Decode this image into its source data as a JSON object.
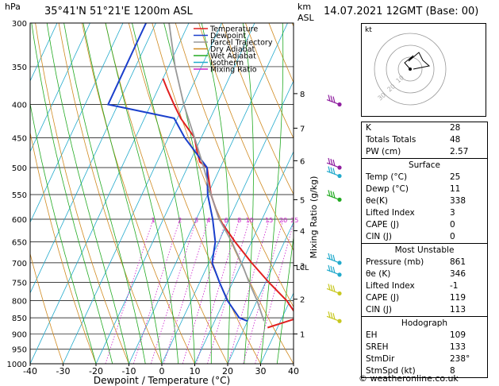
{
  "header": {
    "hpa_label": "hPa",
    "location": "35°41'N  51°21'E  1200m  ASL",
    "km_label": "km",
    "asl_label": "ASL",
    "datetime": "14.07.2021  12GMT  (Base: 00)"
  },
  "footer": {
    "copyright": "© weatheronline.co.uk"
  },
  "chart_data": {
    "type": "line",
    "title": "",
    "xlabel": "Dewpoint / Temperature (°C)",
    "ylabel": "hPa",
    "mixing_ratio_label": "Mixing Ratio (g/kg)",
    "x_ticks": [
      -40,
      -30,
      -20,
      -10,
      0,
      10,
      20,
      30,
      40
    ],
    "xlim": [
      -40,
      40
    ],
    "ylim": [
      1000,
      300
    ],
    "y_log_scale": true,
    "pressure_ticks": [
      300,
      350,
      400,
      450,
      500,
      550,
      600,
      650,
      700,
      750,
      800,
      850,
      900,
      950,
      1000
    ],
    "km_ticks": [
      {
        "km": "1",
        "p": 900
      },
      {
        "km": "2",
        "p": 796
      },
      {
        "km": "3",
        "p": 707
      },
      {
        "km": "4",
        "p": 625
      },
      {
        "km": "5",
        "p": 560
      },
      {
        "km": "6",
        "p": 488
      },
      {
        "km": "7",
        "p": 435
      },
      {
        "km": "8",
        "p": 385
      }
    ],
    "lcl_label": "LCL",
    "lcl_p": 710,
    "mixing_ratio_values": [
      "1",
      "2",
      "3",
      "4",
      "6",
      "8",
      "10",
      "15",
      "20",
      "25"
    ],
    "legend": [
      {
        "name": "Temperature",
        "color": "#e02020"
      },
      {
        "name": "Dewpoint",
        "color": "#1a3fcc"
      },
      {
        "name": "Parcel Trajectory",
        "color": "#999999"
      },
      {
        "name": "Dry Adiabat",
        "color": "#d08a20"
      },
      {
        "name": "Wet Adiabat",
        "color": "#22aa22"
      },
      {
        "name": "Isotherm",
        "color": "#22aacc"
      },
      {
        "name": "Mixing Ratio",
        "color": "#cc22cc"
      }
    ],
    "legend_position": "top-left",
    "series": [
      {
        "name": "Temperature",
        "color": "#e02020",
        "points": [
          [
            880,
            27
          ],
          [
            865,
            31
          ],
          [
            850,
            35
          ],
          [
            800,
            29
          ],
          [
            750,
            21
          ],
          [
            700,
            13
          ],
          [
            650,
            5
          ],
          [
            600,
            -3
          ],
          [
            550,
            -9
          ],
          [
            500,
            -14
          ],
          [
            490,
            -17
          ],
          [
            475,
            -19
          ],
          [
            450,
            -22
          ],
          [
            420,
            -29
          ],
          [
            400,
            -33
          ],
          [
            380,
            -37
          ],
          [
            365,
            -40
          ]
        ]
      },
      {
        "name": "Dewpoint",
        "color": "#1a3fcc",
        "points": [
          [
            860,
            20
          ],
          [
            850,
            17
          ],
          [
            800,
            11
          ],
          [
            750,
            6
          ],
          [
            700,
            1
          ],
          [
            650,
            -1
          ],
          [
            600,
            -5
          ],
          [
            550,
            -10
          ],
          [
            500,
            -14
          ],
          [
            450,
            -25
          ],
          [
            420,
            -31
          ],
          [
            400,
            -53
          ],
          [
            380,
            -53
          ],
          [
            350,
            -53
          ],
          [
            320,
            -53
          ],
          [
            300,
            -53
          ]
        ]
      },
      {
        "name": "Parcel Trajectory",
        "color": "#999999",
        "points": [
          [
            860,
            25
          ],
          [
            800,
            20
          ],
          [
            750,
            15
          ],
          [
            710,
            11
          ],
          [
            650,
            4
          ],
          [
            600,
            -3
          ],
          [
            550,
            -9
          ],
          [
            500,
            -15
          ],
          [
            450,
            -22
          ],
          [
            400,
            -30
          ],
          [
            350,
            -38
          ],
          [
            300,
            -46
          ]
        ]
      }
    ],
    "wind_barbs": [
      {
        "p": 400,
        "color": "#9020a0"
      },
      {
        "p": 500,
        "color": "#9020a0"
      },
      {
        "p": 515,
        "color": "#22aacc"
      },
      {
        "p": 560,
        "color": "#22aa22"
      },
      {
        "p": 700,
        "color": "#22aacc"
      },
      {
        "p": 730,
        "color": "#22aacc"
      },
      {
        "p": 780,
        "color": "#c8c820"
      },
      {
        "p": 860,
        "color": "#c8c820"
      }
    ]
  },
  "hodograph": {
    "label": "kt",
    "ring_labels": [
      "10",
      "20",
      "30"
    ]
  },
  "indices": {
    "top": [
      {
        "label": "K",
        "value": "28"
      },
      {
        "label": "Totals Totals",
        "value": "48"
      },
      {
        "label": "PW (cm)",
        "value": "2.57"
      }
    ],
    "surface": {
      "title": "Surface",
      "rows": [
        {
          "label": "Temp (°C)",
          "value": "25"
        },
        {
          "label": "Dewp (°C)",
          "value": "11"
        },
        {
          "label": "θe(K)",
          "value": "338"
        },
        {
          "label": "Lifted Index",
          "value": "3"
        },
        {
          "label": "CAPE (J)",
          "value": "0"
        },
        {
          "label": "CIN (J)",
          "value": "0"
        }
      ]
    },
    "most_unstable": {
      "title": "Most Unstable",
      "rows": [
        {
          "label": "Pressure (mb)",
          "value": "861"
        },
        {
          "label": "θe (K)",
          "value": "346"
        },
        {
          "label": "Lifted Index",
          "value": "-1"
        },
        {
          "label": "CAPE (J)",
          "value": "119"
        },
        {
          "label": "CIN (J)",
          "value": "113"
        }
      ]
    },
    "hodograph": {
      "title": "Hodograph",
      "rows": [
        {
          "label": "EH",
          "value": "109"
        },
        {
          "label": "SREH",
          "value": "133"
        },
        {
          "label": "StmDir",
          "value": "238°"
        },
        {
          "label": "StmSpd (kt)",
          "value": "8"
        }
      ]
    }
  }
}
